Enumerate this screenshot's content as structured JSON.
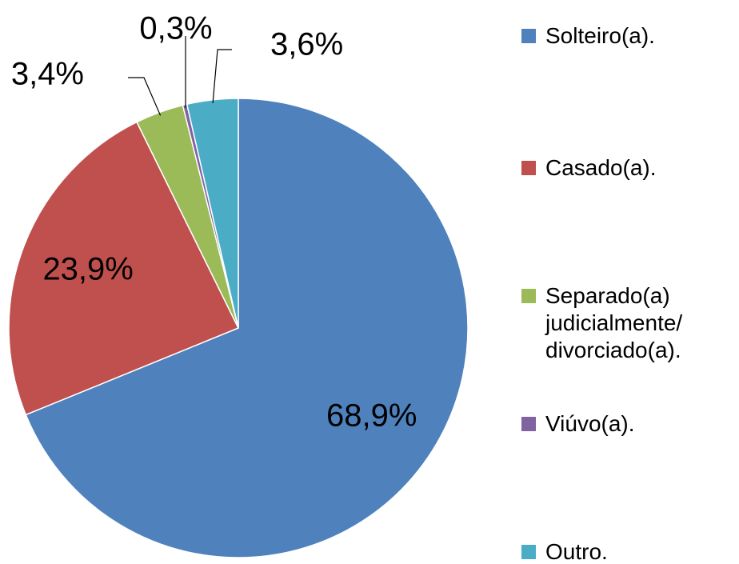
{
  "chart_data": {
    "type": "pie",
    "categories": [
      "Solteiro(a).",
      "Casado(a).",
      "Separado(a) judicialmente/ divorciado(a).",
      "Viúvo(a).",
      "Outro."
    ],
    "values": [
      68.9,
      23.9,
      3.4,
      0.3,
      3.6
    ],
    "value_labels": [
      "68,9%",
      "23,9%",
      "3,4%",
      "0,3%",
      "3,6%"
    ],
    "colors": [
      "#4f81bd",
      "#c0504d",
      "#9bbb59",
      "#8064a2",
      "#4bacc6"
    ],
    "legend": "right"
  }
}
